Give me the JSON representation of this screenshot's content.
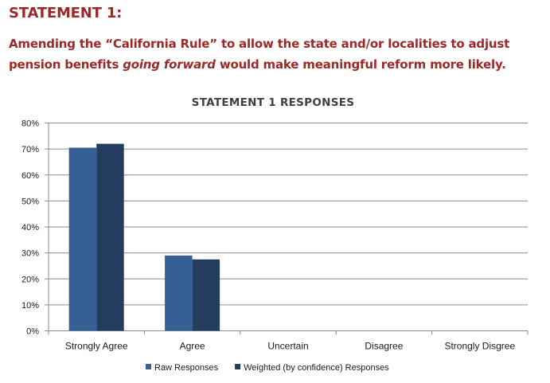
{
  "heading": "STATEMENT 1:",
  "statement": {
    "part1": "Amending the “California Rule” to allow the state and/or localities to adjust pension benefits ",
    "emphasis": "going forward",
    "part2": " would make meaningful reform more likely."
  },
  "chart_data": {
    "type": "bar",
    "title": "STATEMENT  1 RESPONSES",
    "categories": [
      "Strongly Agree",
      "Agree",
      "Uncertain",
      "Disagree",
      "Strongly Disgree"
    ],
    "series": [
      {
        "name": "Raw Responses",
        "color": "#365f95",
        "values": [
          70.5,
          29.0,
          0,
          0,
          0
        ]
      },
      {
        "name": "Weighted (by confidence) Responses",
        "color": "#243c5e",
        "values": [
          72.0,
          27.5,
          0,
          0,
          0
        ]
      }
    ],
    "y_ticks": [
      "0%",
      "10%",
      "20%",
      "30%",
      "40%",
      "50%",
      "60%",
      "70%",
      "80%"
    ],
    "ylim": [
      0,
      80
    ],
    "grid": true,
    "legend_position": "bottom"
  }
}
